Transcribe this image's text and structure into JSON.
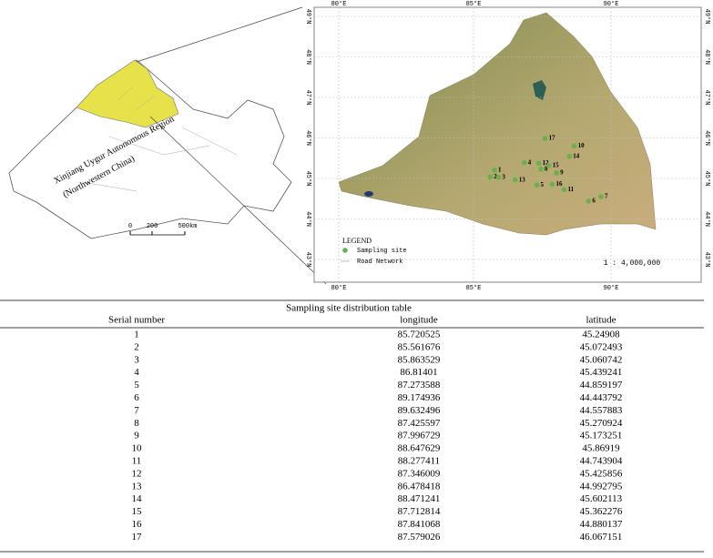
{
  "inset_map": {
    "region_label": "Xinjiang Uygur Autonomous Region",
    "region_note": "(Northwestern China)",
    "scale_labels": [
      "0",
      "200",
      "500km"
    ]
  },
  "main_map": {
    "lon_labels": [
      "80°E",
      "85°E",
      "90°E"
    ],
    "lat_labels": [
      "49°N",
      "48°N",
      "47°N",
      "46°N",
      "45°N",
      "44°N",
      "43°N"
    ],
    "legend": {
      "title": "LEGEND",
      "items": [
        "Sampling site",
        "Road Network"
      ]
    },
    "scale": "1 : 4,000,000"
  },
  "table": {
    "title": "Sampling site distribution table",
    "headers": [
      "Serial number",
      "longitude",
      "latitude"
    ],
    "rows": [
      [
        1,
        85.720525,
        45.24908
      ],
      [
        2,
        85.561676,
        45.072493
      ],
      [
        3,
        85.863529,
        45.060742
      ],
      [
        4,
        86.81401,
        45.439241
      ],
      [
        5,
        87.273588,
        44.859197
      ],
      [
        6,
        89.174936,
        44.443792
      ],
      [
        7,
        89.632496,
        44.557883
      ],
      [
        8,
        87.425597,
        45.270924
      ],
      [
        9,
        87.996729,
        45.173251
      ],
      [
        10,
        88.647629,
        45.86919
      ],
      [
        11,
        88.277411,
        44.743904
      ],
      [
        12,
        87.346009,
        45.425856
      ],
      [
        13,
        86.478418,
        44.992795
      ],
      [
        14,
        88.471241,
        45.602113
      ],
      [
        15,
        87.712814,
        45.362276
      ],
      [
        16,
        87.841068,
        44.880137
      ],
      [
        17,
        87.579026,
        46.067151
      ]
    ]
  }
}
